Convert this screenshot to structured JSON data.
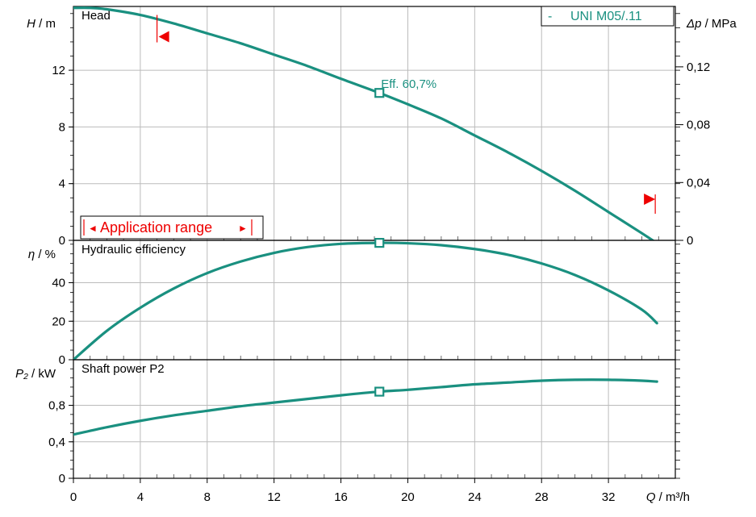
{
  "chart_data": [
    {
      "type": "line",
      "panel": "head",
      "title": "Head",
      "ylabel": {
        "var": "H",
        "unit": "m"
      },
      "ylabel_right": {
        "var": "Δp",
        "unit": "MPa"
      },
      "xlim": [
        0,
        36
      ],
      "ylim": [
        0,
        16.5
      ],
      "yticks": [
        0,
        4,
        8,
        12
      ],
      "yticks_right": [
        "0",
        "0,04",
        "0,08",
        "0,12"
      ],
      "yticks_right_vals": [
        0,
        4.08,
        8.16,
        12.24
      ],
      "grid": true,
      "legend": "top-right",
      "color": "#1a9080",
      "series": [
        {
          "name": "UNI M05/.11",
          "x": [
            0,
            1,
            2,
            4,
            6,
            8,
            10,
            12,
            14,
            16,
            18.3,
            20,
            22,
            24,
            26,
            28,
            30,
            32,
            34,
            34.9
          ],
          "y": [
            16.4,
            16.4,
            16.3,
            15.9,
            15.3,
            14.6,
            13.9,
            13.1,
            12.3,
            11.4,
            10.4,
            9.6,
            8.6,
            7.4,
            6.2,
            4.9,
            3.5,
            2.0,
            0.5,
            -0.2
          ]
        }
      ],
      "marker": {
        "x": 18.3,
        "y": 10.4
      },
      "annotation": "Eff.  60,7%",
      "application_range": {
        "label": "Application range",
        "x_min": 5,
        "x_max": 34.8,
        "left_glyph": "◄",
        "right_glyph": "►"
      }
    },
    {
      "type": "line",
      "panel": "efficiency",
      "title": "Hydraulic efficiency",
      "ylabel": {
        "var": "η",
        "unit": "%"
      },
      "xlim": [
        0,
        36
      ],
      "ylim": [
        0,
        62
      ],
      "yticks": [
        0,
        20,
        40
      ],
      "grid": true,
      "series": [
        {
          "x": [
            0,
            2,
            4,
            6,
            8,
            10,
            12,
            14,
            16,
            18.3,
            20,
            22,
            24,
            26,
            28,
            30,
            32,
            34,
            34.9
          ],
          "y": [
            0,
            15,
            27,
            37,
            45,
            51,
            55.5,
            58.5,
            60.2,
            60.7,
            60.5,
            59.5,
            57.5,
            54.5,
            50,
            44,
            36,
            26,
            19
          ]
        }
      ],
      "marker": {
        "x": 18.3,
        "y": 60.7
      }
    },
    {
      "type": "line",
      "panel": "power",
      "title": "Shaft power P2",
      "ylabel": {
        "var": "P₂",
        "unit": "kW"
      },
      "xlim": [
        0,
        36
      ],
      "ylim": [
        0,
        1.3
      ],
      "yticks": [
        0,
        0.4,
        0.8
      ],
      "ytick_labels": [
        "0",
        "0,4",
        "0,8"
      ],
      "xticks": [
        0,
        4,
        8,
        12,
        16,
        20,
        24,
        28,
        32
      ],
      "xlabel": {
        "var": "Q",
        "unit": "m³/h"
      },
      "grid": true,
      "series": [
        {
          "x": [
            0,
            2,
            4,
            6,
            8,
            10,
            12,
            14,
            16,
            18.3,
            20,
            22,
            24,
            26,
            28,
            30,
            32,
            34,
            34.9
          ],
          "y": [
            0.48,
            0.56,
            0.63,
            0.69,
            0.74,
            0.79,
            0.83,
            0.87,
            0.91,
            0.95,
            0.97,
            1.0,
            1.03,
            1.05,
            1.07,
            1.08,
            1.08,
            1.07,
            1.06
          ]
        }
      ],
      "marker": {
        "x": 18.3,
        "y": 0.95
      }
    }
  ]
}
